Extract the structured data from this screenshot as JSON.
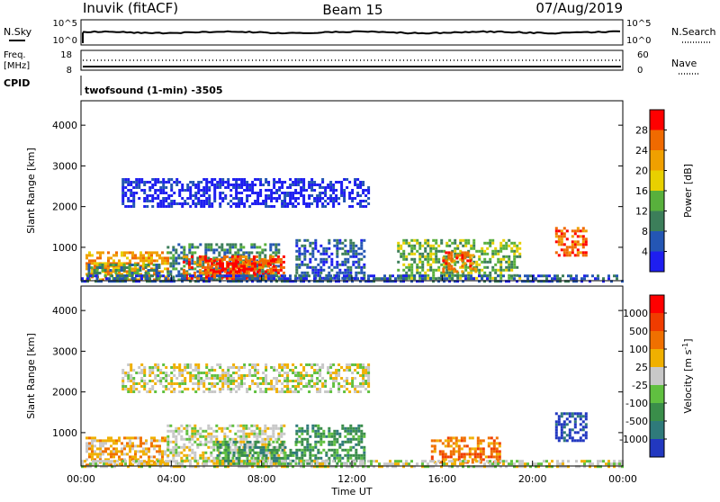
{
  "header": {
    "station": "Inuvik (fitACF)",
    "beam": "Beam 15",
    "date": "07/Aug/2019"
  },
  "top_panels": {
    "nsky_label": "N.Sky",
    "nsky_ticks": [
      "10^5",
      "10^0"
    ],
    "nsearch_label": "N.Search",
    "nsearch_ticks": [
      "10^5",
      "10^0"
    ],
    "freq_label_line1": "Freq.",
    "freq_label_line2": "[MHz]",
    "freq_ticks": [
      "18",
      "8"
    ],
    "nave_label": "Nave",
    "nave_ticks": [
      "60",
      "0"
    ],
    "cpid_label": "CPID",
    "cpid_text": "twofsound (1-min) -3505"
  },
  "chart_data": [
    {
      "type": "heatmap",
      "name": "power-panel",
      "ylabel": "Slant Range [km]",
      "xlabel": "",
      "yticks": [
        "1000",
        "2000",
        "3000",
        "4000"
      ],
      "ylim": [
        180,
        4600
      ],
      "xlim": [
        0,
        24
      ],
      "colorbar_label": "Power [dB]",
      "colorbar_ticks": [
        "4",
        "8",
        "12",
        "16",
        "20",
        "24",
        "28"
      ],
      "colorbar_colors": [
        "#1e1ef0",
        "#2456b4",
        "#3c7e5a",
        "#58b03c",
        "#e8d000",
        "#f0a000",
        "#f06a00",
        "#ff0000"
      ],
      "regions": [
        {
          "t0": 0.2,
          "t1": 3.8,
          "r0": 230,
          "r1": 900,
          "level": 5
        },
        {
          "t0": 0.3,
          "t1": 3.5,
          "r0": 230,
          "r1": 600,
          "level": 2
        },
        {
          "t0": 3.8,
          "t1": 8.8,
          "r0": 230,
          "r1": 1100,
          "level": 2
        },
        {
          "t0": 4.5,
          "t1": 9.0,
          "r0": 230,
          "r1": 800,
          "level": 6
        },
        {
          "t0": 5.5,
          "t1": 8.6,
          "r0": 260,
          "r1": 700,
          "level": 7
        },
        {
          "t0": 1.8,
          "t1": 12.8,
          "r0": 2000,
          "r1": 2700,
          "level": 0
        },
        {
          "t0": 9.5,
          "t1": 12.5,
          "r0": 230,
          "r1": 1200,
          "level": 1
        },
        {
          "t0": 14.0,
          "t1": 19.5,
          "r0": 230,
          "r1": 1200,
          "level": 3
        },
        {
          "t0": 16.0,
          "t1": 17.5,
          "r0": 400,
          "r1": 900,
          "level": 6
        },
        {
          "t0": 21.0,
          "t1": 22.4,
          "r0": 800,
          "r1": 1500,
          "level": 6
        },
        {
          "t0": 0.0,
          "t1": 24.0,
          "r0": 180,
          "r1": 330,
          "level": 1
        }
      ]
    },
    {
      "type": "heatmap",
      "name": "velocity-panel",
      "ylabel": "Slant Range [km]",
      "xlabel": "Time UT",
      "yticks": [
        "1000",
        "2000",
        "3000",
        "4000"
      ],
      "ylim": [
        180,
        4600
      ],
      "xlim": [
        0,
        24
      ],
      "xticks": [
        "00:00",
        "04:00",
        "08:00",
        "12:00",
        "16:00",
        "20:00",
        "00:00"
      ],
      "colorbar_label": "Velocity [m s",
      "colorbar_label_sup": "-1",
      "colorbar_label_end": "]",
      "colorbar_ticks": [
        "1000",
        "500",
        "100",
        "25",
        "-25",
        "-100",
        "-500",
        "-1000"
      ],
      "colorbar_colors": [
        "#2238c0",
        "#2f7a7a",
        "#3a8e4a",
        "#60c040",
        "#c8c8c8",
        "#f0b000",
        "#f07000",
        "#f03c00",
        "#ff0000"
      ],
      "regions": [
        {
          "t0": 0.2,
          "t1": 3.8,
          "r0": 230,
          "r1": 900,
          "level": 5
        },
        {
          "t0": 3.8,
          "t1": 9.0,
          "r0": 230,
          "r1": 1200,
          "level": 4
        },
        {
          "t0": 6.0,
          "t1": 9.5,
          "r0": 230,
          "r1": 800,
          "level": 2
        },
        {
          "t0": 1.8,
          "t1": 12.8,
          "r0": 2000,
          "r1": 2700,
          "level": 4
        },
        {
          "t0": 9.5,
          "t1": 12.5,
          "r0": 230,
          "r1": 1200,
          "level": 2
        },
        {
          "t0": 15.5,
          "t1": 18.5,
          "r0": 300,
          "r1": 900,
          "level": 6
        },
        {
          "t0": 21.0,
          "t1": 22.4,
          "r0": 800,
          "r1": 1500,
          "level": 0
        },
        {
          "t0": 0.0,
          "t1": 24.0,
          "r0": 180,
          "r1": 330,
          "level": 4
        }
      ]
    }
  ]
}
